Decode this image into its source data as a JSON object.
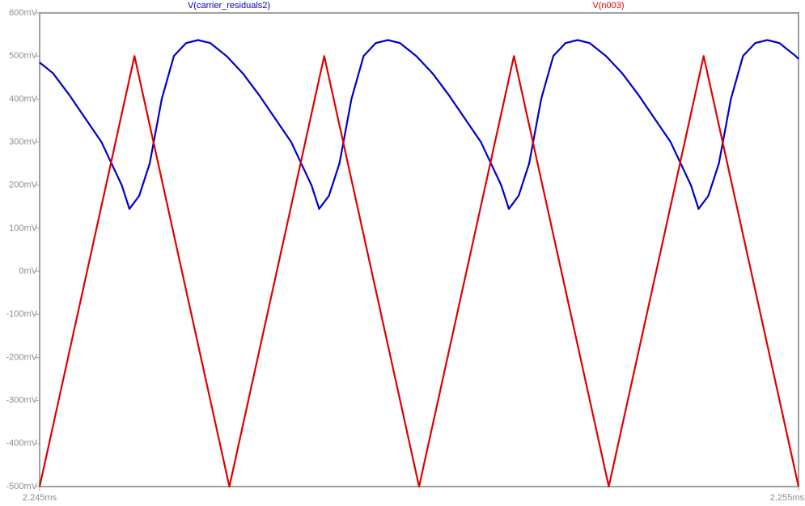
{
  "chart_data": {
    "type": "line",
    "ylim": [
      -500,
      600
    ],
    "yticks": [
      {
        "value": 600,
        "label": "600mV"
      },
      {
        "value": 500,
        "label": "500mV"
      },
      {
        "value": 400,
        "label": "400mV"
      },
      {
        "value": 300,
        "label": "300mV"
      },
      {
        "value": 200,
        "label": "200mV"
      },
      {
        "value": 100,
        "label": "100mV"
      },
      {
        "value": 0,
        "label": "0mV"
      },
      {
        "value": -100,
        "label": "-100mV"
      },
      {
        "value": -200,
        "label": "-200mV"
      },
      {
        "value": -300,
        "label": "-300mV"
      },
      {
        "value": -400,
        "label": "-400mV"
      },
      {
        "value": -500,
        "label": "-500mV"
      }
    ],
    "xlim": [
      2.245,
      2.255
    ],
    "xticks": [
      {
        "value": 2.245,
        "label": "2.245ms"
      },
      {
        "value": 2.255,
        "label": "2.255ms"
      }
    ],
    "grid": false,
    "series": [
      {
        "name": "V(carrier_residuals2)",
        "color": "#0000cc",
        "x": [
          2.245,
          2.245176,
          2.245389,
          2.245602,
          2.245815,
          2.245975,
          2.246082,
          2.246183,
          2.246311,
          2.24645,
          2.246609,
          2.246769,
          2.246929,
          2.247089,
          2.247249,
          2.247462,
          2.247676,
          2.247889,
          2.248102,
          2.248315,
          2.248475,
          2.248582,
          2.248683,
          2.248811,
          2.24895,
          2.249109,
          2.249269,
          2.249429,
          2.249589,
          2.249749,
          2.249962,
          2.250176,
          2.250389,
          2.250602,
          2.250815,
          2.250975,
          2.251082,
          2.251183,
          2.251311,
          2.25145,
          2.251609,
          2.251769,
          2.251929,
          2.252089,
          2.252249,
          2.252462,
          2.252676,
          2.252889,
          2.253102,
          2.253315,
          2.253475,
          2.253582,
          2.253683,
          2.253811,
          2.25395,
          2.254109,
          2.254269,
          2.254429,
          2.254589,
          2.254749,
          2.254962,
          2.255
        ],
        "values": [
          485,
          460,
          410,
          355,
          300,
          240,
          200,
          145,
          175,
          250,
          400,
          500,
          530,
          537,
          530,
          500,
          460,
          410,
          355,
          300,
          240,
          200,
          145,
          175,
          250,
          400,
          500,
          530,
          537,
          530,
          500,
          460,
          410,
          355,
          300,
          240,
          200,
          145,
          175,
          250,
          400,
          500,
          530,
          537,
          530,
          500,
          460,
          410,
          355,
          300,
          240,
          200,
          145,
          175,
          250,
          400,
          500,
          530,
          537,
          530,
          500,
          493
        ]
      },
      {
        "name": "V(n003)",
        "color": "#e00000",
        "x": [
          2.245,
          2.24625,
          2.2475,
          2.24875,
          2.25,
          2.25125,
          2.2525,
          2.25375,
          2.255
        ],
        "values": [
          -500,
          500,
          -500,
          500,
          -500,
          500,
          -500,
          500,
          -500
        ]
      }
    ]
  }
}
